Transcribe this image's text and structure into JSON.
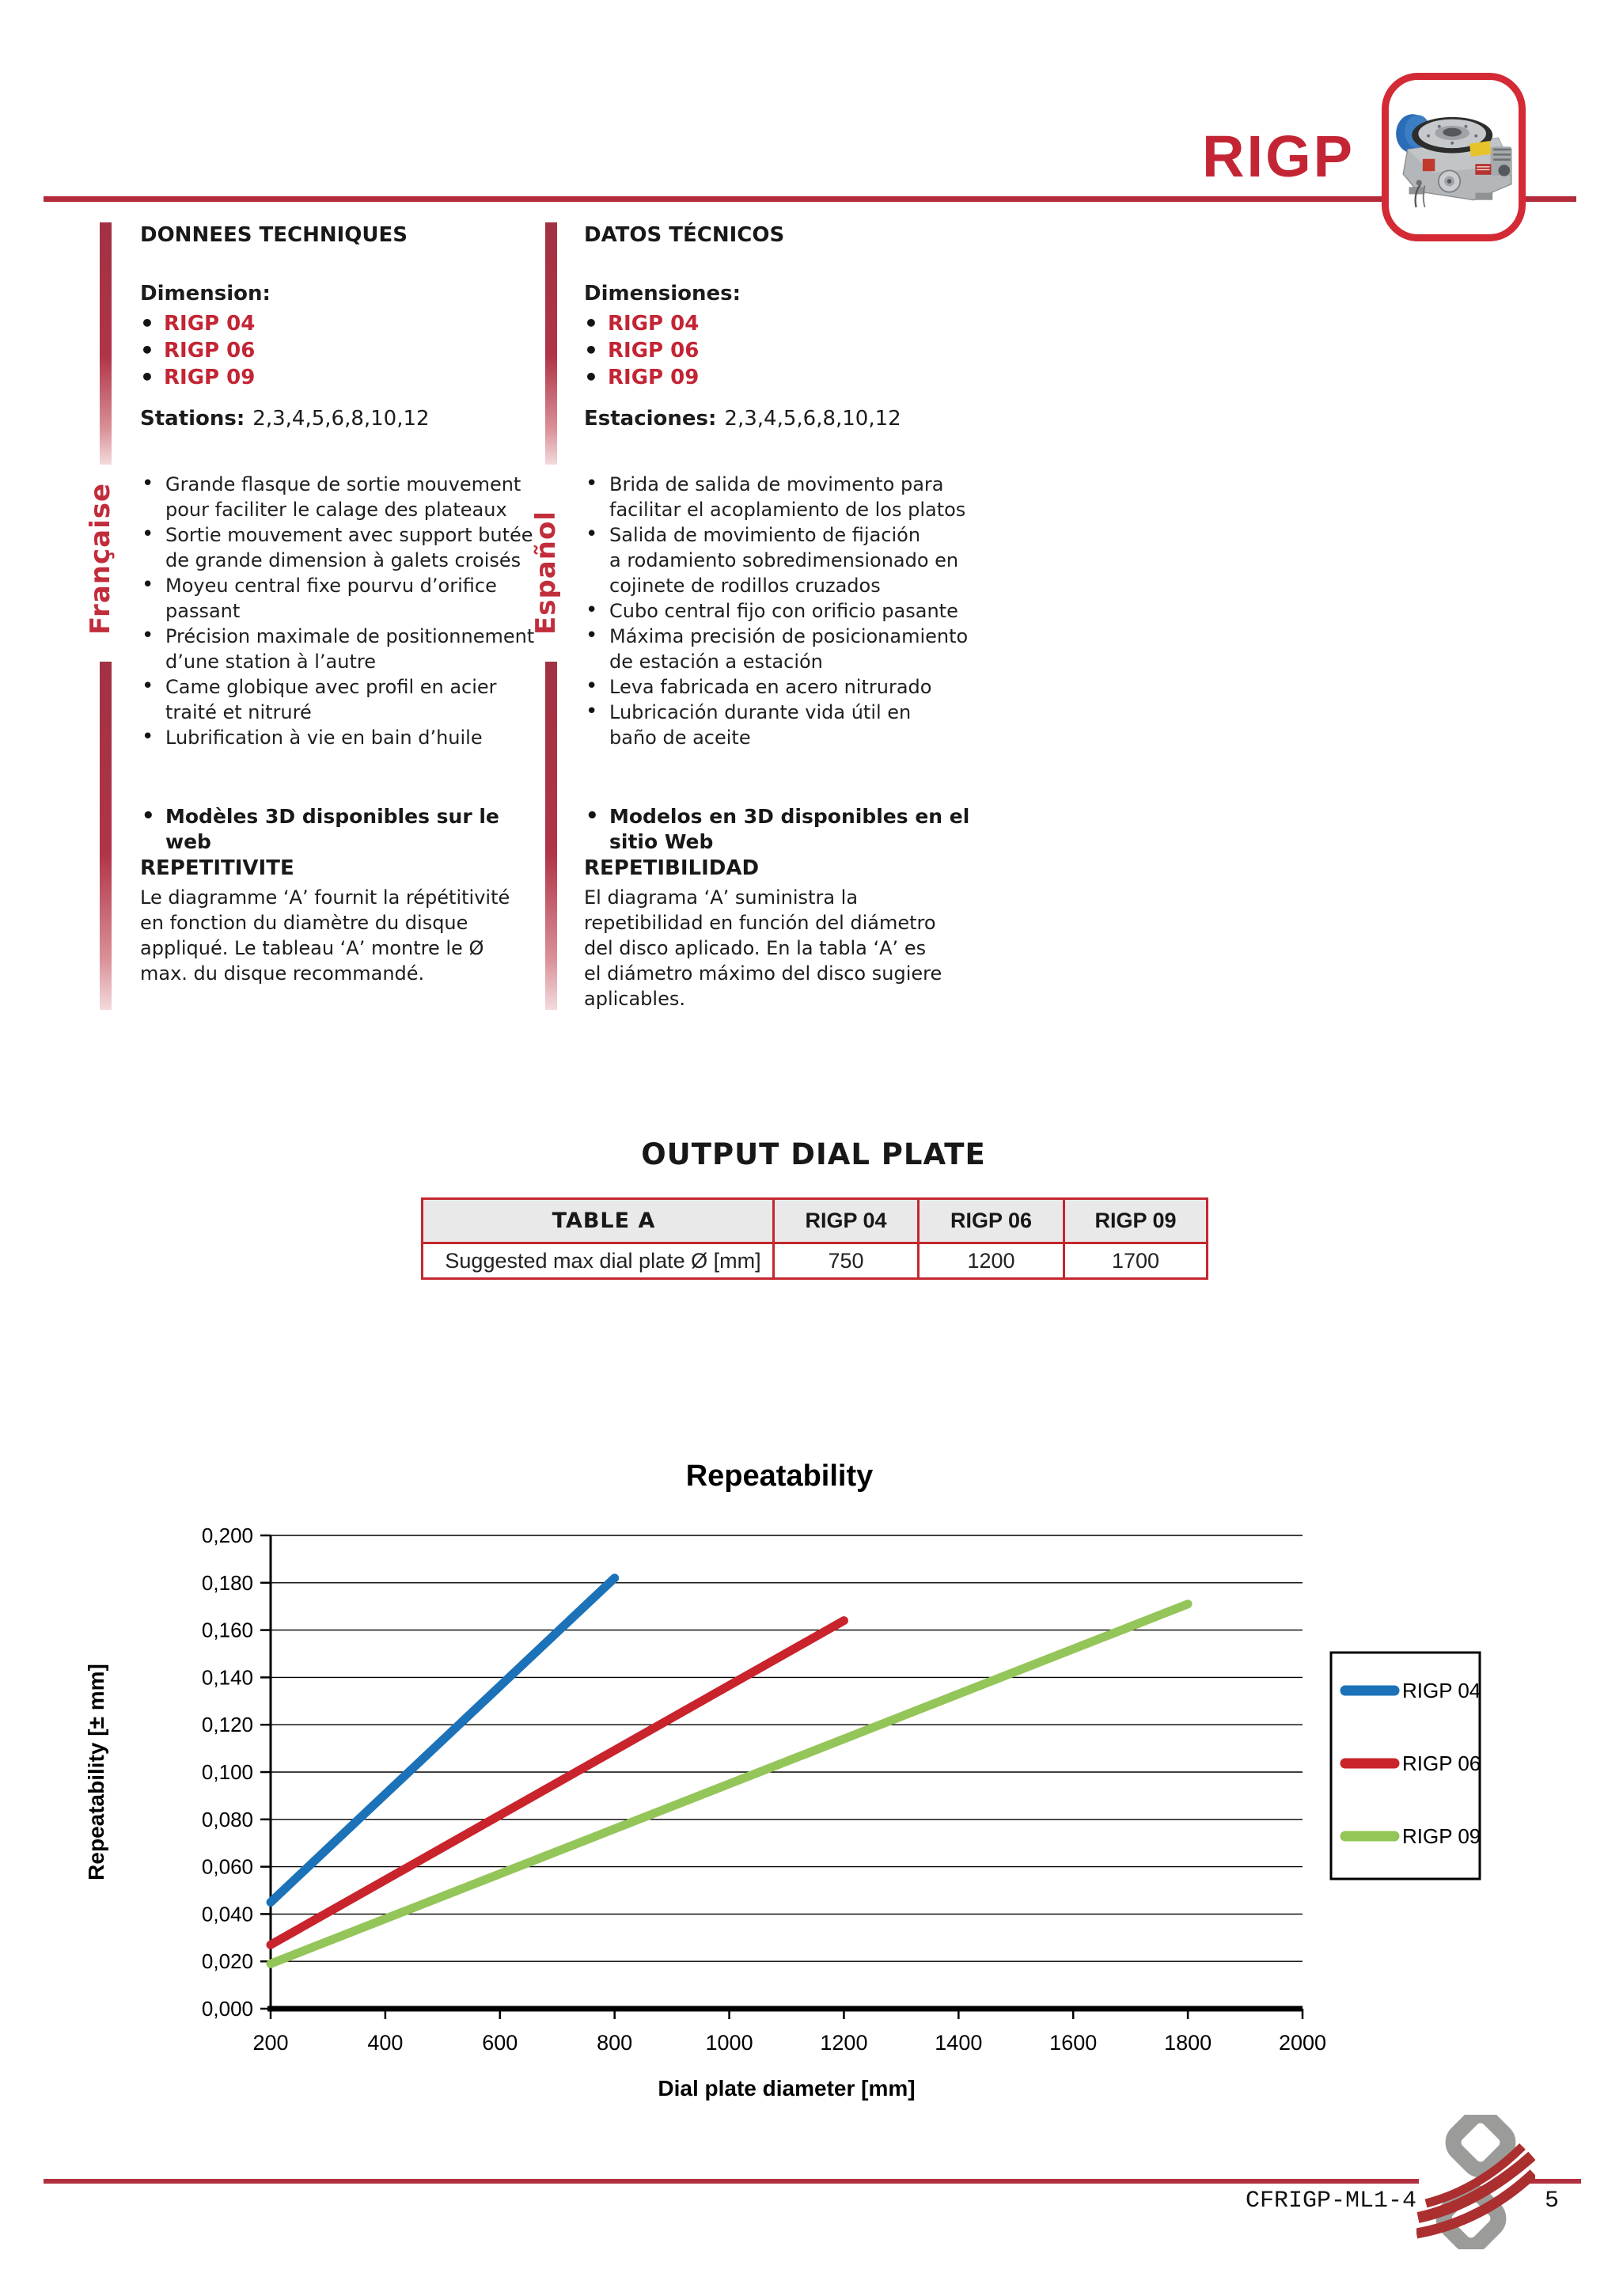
{
  "page": {
    "background": "#ffffff",
    "accent_red": "#c32534",
    "rule_red": "#b32b3a"
  },
  "header": {
    "title": "RIGP",
    "product_photo": "rotary-index-table"
  },
  "french": {
    "lang_label": "Française",
    "heading": "DONNEES TECHNIQUES",
    "dimension_label": "Dimension:",
    "models": [
      "RIGP 04",
      "RIGP 06",
      "RIGP 09"
    ],
    "stations_label": "Stations:",
    "stations_value": "2,3,4,5,6,8,10,12",
    "features": [
      "Grande flasque de sortie mouvement\npour faciliter le calage des plateaux",
      "Sortie mouvement avec support butée\nde grande dimension à galets croisés",
      "Moyeu central fixe pourvu d’orifice\npassant",
      "Précision maximale de positionnement\nd’une station à l’autre",
      "Came globique avec profil en acier\ntraité et nitruré",
      "Lubrification à vie en bain d’huile"
    ],
    "web_note": "Modèles 3D disponibles sur le web",
    "repeat_heading": "REPETITIVITE",
    "repeat_text": "Le diagramme  ‘A’ fournit la répétitivité\nen fonction du diamètre du disque\nappliqué. Le tableau ‘A’ montre le Ø\nmax. du disque recommandé."
  },
  "spanish": {
    "lang_label": "Español",
    "heading": "DATOS TÉCNICOS",
    "dimension_label": "Dimensiones:",
    "models": [
      "RIGP 04",
      "RIGP 06",
      "RIGP 09"
    ],
    "stations_label": "Estaciones:",
    "stations_value": "2,3,4,5,6,8,10,12",
    "features": [
      "Brida de salida de movimento para\nfacilitar el acoplamiento de los platos",
      "Salida de movimiento de fijación\na rodamiento sobredimensionado en\ncojinete de rodillos cruzados",
      "Cubo central fijo con orificio pasante",
      "Máxima precisión de posicionamiento\nde estación a estación",
      "Leva fabricada en acero nitrurado",
      "Lubricación durante vida útil en\nbaño de aceite"
    ],
    "web_note": "Modelos en 3D disponibles en el\nsitio Web",
    "repeat_heading": "REPETIBILIDAD",
    "repeat_text": "El diagrama ‘A’ suministra la\nrepetibilidad  en función del diámetro\ndel disco aplicado.  En la tabla ‘A’ es\nel diámetro máximo del disco sugiere\naplicables."
  },
  "section": {
    "title": "OUTPUT DIAL PLATE"
  },
  "table_a": {
    "name_header": "TABLE A",
    "col_headers": [
      "RIGP 04",
      "RIGP 06",
      "RIGP 09"
    ],
    "row_label": "Suggested max dial plate Ø [mm]",
    "row_values": [
      "750",
      "1200",
      "1700"
    ]
  },
  "chart_data": {
    "type": "line",
    "title": "Repeatability",
    "xlabel": "Dial plate diameter [mm]",
    "ylabel": "Repeatability  [± mm]",
    "xlim": [
      200,
      2000
    ],
    "ylim": [
      0,
      0.2
    ],
    "xticks": [
      200,
      400,
      600,
      800,
      1000,
      1200,
      1400,
      1600,
      1800,
      2000
    ],
    "yticks": [
      0,
      0.02,
      0.04,
      0.06,
      0.08,
      0.1,
      0.12,
      0.14,
      0.16,
      0.18,
      0.2
    ],
    "ytick_labels": [
      "0,000",
      "0,020",
      "0,040",
      "0,060",
      "0,080",
      "0,100",
      "0,120",
      "0,140",
      "0,160",
      "0,180",
      "0,200"
    ],
    "grid": "horizontal",
    "legend_position": "right",
    "series": [
      {
        "name": "RIGP 04",
        "color": "#1b72b8",
        "points": [
          [
            200,
            0.045
          ],
          [
            800,
            0.182
          ]
        ]
      },
      {
        "name": "RIGP 06",
        "color": "#c9232b",
        "points": [
          [
            200,
            0.027
          ],
          [
            1200,
            0.164
          ]
        ]
      },
      {
        "name": "RIGP 09",
        "color": "#93c558",
        "points": [
          [
            200,
            0.019
          ],
          [
            1800,
            0.171
          ]
        ]
      }
    ]
  },
  "footer": {
    "doc_code": "CFRIGP-ML1-4",
    "page_number": "5"
  }
}
